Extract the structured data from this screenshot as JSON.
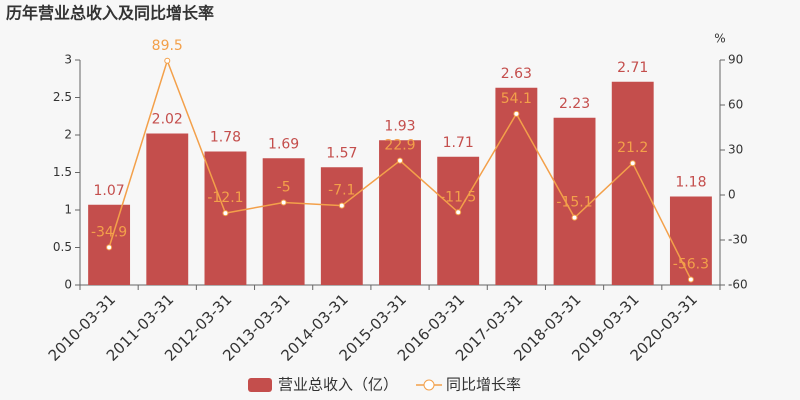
{
  "chart_data": {
    "type": "bar",
    "title": "历年营业总收入及同比增长率",
    "y2label": "%",
    "categories": [
      "2010-03-31",
      "2011-03-31",
      "2012-03-31",
      "2013-03-31",
      "2014-03-31",
      "2015-03-31",
      "2016-03-31",
      "2017-03-31",
      "2018-03-31",
      "2019-03-31",
      "2020-03-31"
    ],
    "series": [
      {
        "name": "营业总收入（亿）",
        "type": "bar",
        "color": "#c44e4c",
        "values": [
          1.07,
          2.02,
          1.78,
          1.69,
          1.57,
          1.93,
          1.71,
          2.63,
          2.23,
          2.71,
          1.18
        ]
      },
      {
        "name": "同比增长率",
        "type": "line",
        "axis": "y2",
        "color": "#f3a04a",
        "values": [
          -34.9,
          89.5,
          -12.1,
          -5,
          -7.1,
          22.9,
          -11.5,
          54.1,
          -15.1,
          21.2,
          -56.3
        ]
      }
    ],
    "ylim": [
      0,
      3
    ],
    "yticks": [
      0,
      0.5,
      1,
      1.5,
      2,
      2.5,
      3
    ],
    "y2lim": [
      -60,
      90
    ],
    "y2ticks": [
      -60,
      -30,
      0,
      30,
      60,
      90
    ],
    "grid": false
  }
}
